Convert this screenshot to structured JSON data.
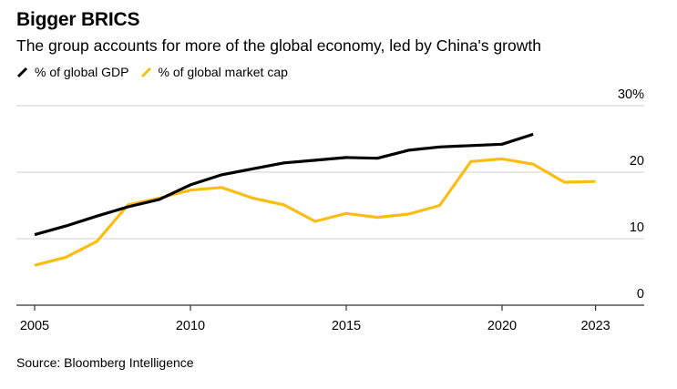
{
  "header": {
    "title": "Bigger BRICS",
    "subtitle": "The group accounts for more of the global economy, led by China's growth"
  },
  "legend": [
    {
      "label": "% of global GDP",
      "color": "#000000",
      "icon": "diagonal-line-icon"
    },
    {
      "label": "% of global market cap",
      "color": "#fcbd13",
      "icon": "diagonal-line-icon"
    }
  ],
  "footer": {
    "source": "Source: Bloomberg Intelligence"
  },
  "chart_data": {
    "type": "line",
    "title": "Bigger BRICS",
    "subtitle": "The group accounts for more of the global economy, led by China's growth",
    "xlabel": "",
    "ylabel": "",
    "xlim": [
      2005,
      2024.6
    ],
    "ylim": [
      0,
      30
    ],
    "x_ticks": [
      2005,
      2010,
      2015,
      2020,
      2023
    ],
    "x_tick_labels": [
      "2005",
      "2010",
      "2015",
      "2020",
      "2023"
    ],
    "y_ticks": [
      0,
      10,
      20,
      30
    ],
    "y_tick_labels": [
      "0",
      "10",
      "20",
      "30%"
    ],
    "y_axis_position": "right",
    "grid": true,
    "legend_position": "top-left",
    "series": [
      {
        "name": "% of global GDP",
        "color": "#000000",
        "x": [
          2005,
          2006,
          2007,
          2008,
          2009,
          2010,
          2011,
          2012,
          2013,
          2014,
          2015,
          2016,
          2017,
          2018,
          2019,
          2020,
          2021
        ],
        "values": [
          10.6,
          11.9,
          13.4,
          14.8,
          15.9,
          18.1,
          19.6,
          20.5,
          21.4,
          21.8,
          22.2,
          22.1,
          23.3,
          23.8,
          24.0,
          24.2,
          25.7
        ]
      },
      {
        "name": "% of global market cap",
        "color": "#fcbd13",
        "x": [
          2005,
          2006,
          2007,
          2008,
          2009,
          2010,
          2011,
          2012,
          2013,
          2014,
          2015,
          2016,
          2017,
          2018,
          2019,
          2020,
          2021,
          2022,
          2023
        ],
        "values": [
          6.0,
          7.2,
          9.6,
          15.1,
          16.1,
          17.3,
          17.7,
          16.1,
          15.1,
          12.6,
          13.8,
          13.2,
          13.7,
          15.0,
          21.6,
          22.0,
          21.2,
          18.5,
          18.6
        ]
      }
    ],
    "source": "Source: Bloomberg Intelligence"
  }
}
